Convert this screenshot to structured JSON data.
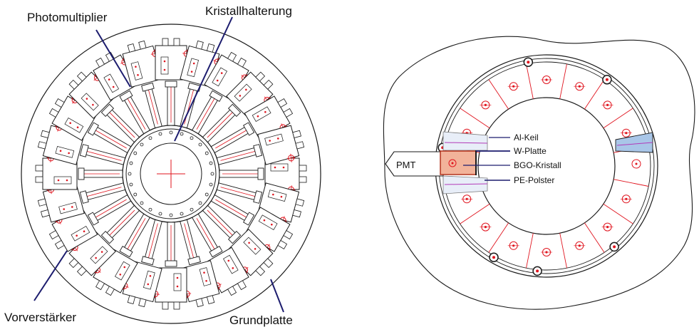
{
  "left_diagram": {
    "labels": {
      "photomultiplier": "Photomultiplier",
      "kristallhalterung": "Kristallhalterung",
      "vorverstaerker": "Vorverstärker",
      "grundplatte": "Grundplatte"
    },
    "module_count": 24
  },
  "right_diagram": {
    "labels": {
      "pmt": "PMT",
      "al_keil": "Al-Keil",
      "w_platte": "W-Platte",
      "bgo_kristall": "BGO-Kristall",
      "pe_polster": "PE-Polster"
    },
    "segment_count": 16
  },
  "colors": {
    "line": "#1a1a1a",
    "red": "#e0141e",
    "leader": "#1c1c6e",
    "bgo_fill": "#f2b39a",
    "bgo_edge": "#b3331d",
    "wedge_fill": "#a9c6e8",
    "wedge_line": "#b23ab8"
  }
}
